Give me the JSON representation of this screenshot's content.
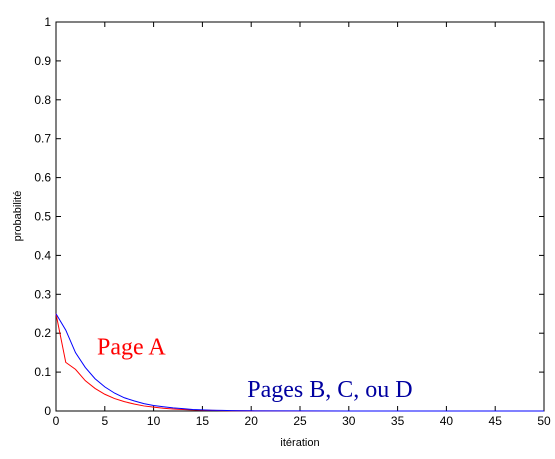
{
  "chart_data": {
    "type": "line",
    "title": "",
    "xlabel": "itération",
    "ylabel": "probabilité",
    "xlim": [
      0,
      50
    ],
    "ylim": [
      0,
      1
    ],
    "xticks": [
      0,
      5,
      10,
      15,
      20,
      25,
      30,
      35,
      40,
      45,
      50
    ],
    "yticks": [
      0,
      0.1,
      0.2,
      0.3,
      0.4,
      0.5,
      0.6,
      0.7,
      0.8,
      0.9,
      1
    ],
    "ytick_labels": [
      "0",
      "0.1",
      "0.2",
      "0.3",
      "0.4",
      "0.5",
      "0.6",
      "0.7",
      "0.8",
      "0.9",
      "1"
    ],
    "grid": false,
    "series": [
      {
        "color": "#ff0000",
        "x": [
          0,
          1,
          2,
          3,
          4,
          5,
          6,
          7,
          8,
          9,
          10,
          11,
          12,
          13,
          14,
          15,
          16,
          17,
          18,
          19,
          20,
          25,
          30,
          35,
          40,
          45,
          50
        ],
        "y": [
          0.25,
          0.125,
          0.107,
          0.078,
          0.058,
          0.043,
          0.032,
          0.024,
          0.018,
          0.013,
          0.01,
          0.007,
          0.005,
          0.004,
          0.003,
          0.002,
          0.0015,
          0.001,
          0.0008,
          0.0005,
          0.0003,
          0.0001,
          0,
          0,
          0,
          0,
          0
        ]
      },
      {
        "color": "#0000ff",
        "x": [
          0,
          1,
          2,
          3,
          4,
          5,
          6,
          7,
          8,
          9,
          10,
          11,
          12,
          13,
          14,
          15,
          16,
          17,
          18,
          19,
          20,
          25,
          30,
          35,
          40,
          45,
          50
        ],
        "y": [
          0.25,
          0.208,
          0.15,
          0.112,
          0.083,
          0.062,
          0.046,
          0.034,
          0.026,
          0.019,
          0.014,
          0.011,
          0.008,
          0.006,
          0.004,
          0.003,
          0.002,
          0.0015,
          0.001,
          0.0008,
          0.0005,
          0.0002,
          0,
          0,
          0,
          0,
          0
        ]
      }
    ],
    "annotations": [
      {
        "text": "Page A",
        "color": "#ff0000",
        "x": 4.2,
        "y": 0.145
      },
      {
        "text": "Pages B, C, ou D",
        "color": "#0000a0",
        "x": 19.6,
        "y": 0.036
      }
    ]
  }
}
